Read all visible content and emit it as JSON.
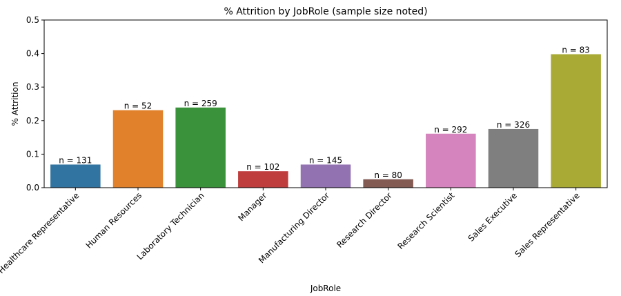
{
  "chart_data": {
    "type": "bar",
    "title": "% Attrition by JobRole (sample size noted)",
    "xlabel": "JobRole",
    "ylabel": "% Attrition",
    "ylim": [
      0,
      0.5
    ],
    "yticks": [
      "0.0",
      "0.1",
      "0.2",
      "0.3",
      "0.4",
      "0.5"
    ],
    "grid": false,
    "categories": [
      "Healthcare Representative",
      "Human Resources",
      "Laboratory Technician",
      "Manager",
      "Manufacturing Director",
      "Research Director",
      "Research Scientist",
      "Sales Executive",
      "Sales Representative"
    ],
    "values": [
      0.069,
      0.231,
      0.239,
      0.049,
      0.069,
      0.025,
      0.161,
      0.175,
      0.398
    ],
    "bar_labels": [
      "n = 131",
      "n = 52",
      "n = 259",
      "n = 102",
      "n = 145",
      "n = 80",
      "n = 292",
      "n = 326",
      "n = 83"
    ],
    "colors": [
      "#3274a1",
      "#e1812c",
      "#3a923a",
      "#c03d3e",
      "#9372b2",
      "#845b53",
      "#d684bd",
      "#7f7f7f",
      "#a9aa35"
    ]
  }
}
